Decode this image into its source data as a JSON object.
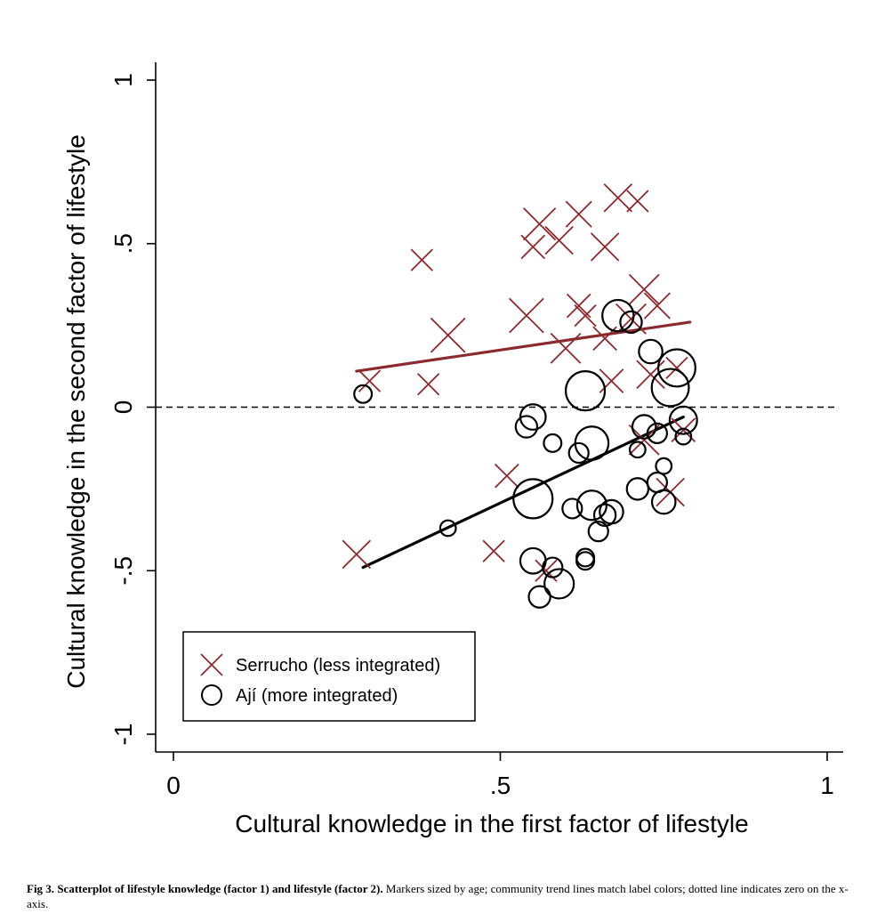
{
  "chart_data": {
    "type": "scatter",
    "xlabel": "Cultural knowledge in the first factor of lifestyle",
    "ylabel": "Cultural knowledge in the second factor of lifestyle",
    "xlim": [
      0,
      1
    ],
    "ylim": [
      -1,
      1
    ],
    "x_ticks": [
      {
        "value": 0,
        "label": "0"
      },
      {
        "value": 0.5,
        "label": ".5"
      },
      {
        "value": 1,
        "label": "1"
      }
    ],
    "y_ticks": [
      {
        "value": -1,
        "label": "-1"
      },
      {
        "value": -0.5,
        "label": "-.5"
      },
      {
        "value": 0,
        "label": "0"
      },
      {
        "value": 0.5,
        "label": ".5"
      },
      {
        "value": 1,
        "label": "1"
      }
    ],
    "grid": false,
    "legend_position": "bottom-left",
    "reference_line": {
      "y": 0,
      "style": "dashed",
      "color": "#000000"
    },
    "series": [
      {
        "name": "Serrucho (less integrated)",
        "marker": "x",
        "color": "#8b2a2e",
        "points": [
          {
            "x": 0.38,
            "y": 0.45,
            "s": 1.0
          },
          {
            "x": 0.42,
            "y": 0.22,
            "s": 1.6
          },
          {
            "x": 0.39,
            "y": 0.07,
            "s": 1.0
          },
          {
            "x": 0.3,
            "y": 0.08,
            "s": 1.0
          },
          {
            "x": 0.28,
            "y": -0.45,
            "s": 1.3
          },
          {
            "x": 0.49,
            "y": -0.44,
            "s": 1.0
          },
          {
            "x": 0.51,
            "y": -0.21,
            "s": 1.1
          },
          {
            "x": 0.54,
            "y": 0.28,
            "s": 1.6
          },
          {
            "x": 0.55,
            "y": 0.49,
            "s": 1.1
          },
          {
            "x": 0.56,
            "y": 0.56,
            "s": 1.5
          },
          {
            "x": 0.59,
            "y": 0.51,
            "s": 1.3
          },
          {
            "x": 0.62,
            "y": 0.59,
            "s": 1.2
          },
          {
            "x": 0.66,
            "y": 0.49,
            "s": 1.3
          },
          {
            "x": 0.68,
            "y": 0.64,
            "s": 1.3
          },
          {
            "x": 0.71,
            "y": 0.63,
            "s": 1.0
          },
          {
            "x": 0.6,
            "y": 0.18,
            "s": 1.4
          },
          {
            "x": 0.62,
            "y": 0.31,
            "s": 1.1
          },
          {
            "x": 0.66,
            "y": 0.21,
            "s": 1.1
          },
          {
            "x": 0.67,
            "y": 0.08,
            "s": 1.1
          },
          {
            "x": 0.7,
            "y": 0.27,
            "s": 1.4
          },
          {
            "x": 0.72,
            "y": 0.36,
            "s": 1.4
          },
          {
            "x": 0.73,
            "y": 0.1,
            "s": 1.3
          },
          {
            "x": 0.74,
            "y": 0.31,
            "s": 1.2
          },
          {
            "x": 0.72,
            "y": -0.1,
            "s": 1.4
          },
          {
            "x": 0.77,
            "y": 0.12,
            "s": 1.0
          },
          {
            "x": 0.78,
            "y": -0.07,
            "s": 1.1
          },
          {
            "x": 0.76,
            "y": -0.26,
            "s": 1.3
          },
          {
            "x": 0.57,
            "y": -0.5,
            "s": 1.0
          },
          {
            "x": 0.63,
            "y": 0.28,
            "s": 1.0
          }
        ],
        "trend": {
          "x": [
            0.28,
            0.79
          ],
          "y": [
            0.11,
            0.26
          ]
        }
      },
      {
        "name": "Ají (more integrated)",
        "marker": "o",
        "color": "#000000",
        "points": [
          {
            "x": 0.29,
            "y": 0.04,
            "s": 0.9
          },
          {
            "x": 0.42,
            "y": -0.37,
            "s": 0.8
          },
          {
            "x": 0.55,
            "y": -0.03,
            "s": 1.3
          },
          {
            "x": 0.54,
            "y": -0.06,
            "s": 1.1
          },
          {
            "x": 0.58,
            "y": -0.11,
            "s": 0.9
          },
          {
            "x": 0.55,
            "y": -0.28,
            "s": 2.0
          },
          {
            "x": 0.63,
            "y": 0.05,
            "s": 2.0
          },
          {
            "x": 0.64,
            "y": -0.11,
            "s": 1.7
          },
          {
            "x": 0.62,
            "y": -0.14,
            "s": 1.0
          },
          {
            "x": 0.61,
            "y": -0.31,
            "s": 1.0
          },
          {
            "x": 0.64,
            "y": -0.3,
            "s": 1.5
          },
          {
            "x": 0.66,
            "y": -0.33,
            "s": 1.1
          },
          {
            "x": 0.67,
            "y": -0.32,
            "s": 1.2
          },
          {
            "x": 0.65,
            "y": -0.38,
            "s": 1.0
          },
          {
            "x": 0.63,
            "y": -0.46,
            "s": 0.9
          },
          {
            "x": 0.63,
            "y": -0.47,
            "s": 0.9
          },
          {
            "x": 0.55,
            "y": -0.47,
            "s": 1.3
          },
          {
            "x": 0.58,
            "y": -0.49,
            "s": 1.0
          },
          {
            "x": 0.59,
            "y": -0.54,
            "s": 1.5
          },
          {
            "x": 0.56,
            "y": -0.58,
            "s": 1.1
          },
          {
            "x": 0.68,
            "y": 0.28,
            "s": 1.6
          },
          {
            "x": 0.7,
            "y": 0.26,
            "s": 1.1
          },
          {
            "x": 0.73,
            "y": 0.17,
            "s": 1.2
          },
          {
            "x": 0.77,
            "y": 0.12,
            "s": 1.9
          },
          {
            "x": 0.76,
            "y": 0.06,
            "s": 1.9
          },
          {
            "x": 0.72,
            "y": -0.06,
            "s": 1.2
          },
          {
            "x": 0.78,
            "y": -0.04,
            "s": 1.4
          },
          {
            "x": 0.78,
            "y": -0.09,
            "s": 0.8
          },
          {
            "x": 0.71,
            "y": -0.13,
            "s": 0.8
          },
          {
            "x": 0.75,
            "y": -0.18,
            "s": 0.8
          },
          {
            "x": 0.71,
            "y": -0.25,
            "s": 1.1
          },
          {
            "x": 0.74,
            "y": -0.23,
            "s": 1.0
          },
          {
            "x": 0.75,
            "y": -0.29,
            "s": 1.2
          },
          {
            "x": 0.74,
            "y": -0.08,
            "s": 1.0
          }
        ],
        "trend": {
          "x": [
            0.29,
            0.78
          ],
          "y": [
            -0.49,
            -0.03
          ]
        }
      }
    ]
  },
  "caption": {
    "label": "Fig 3.",
    "title": "Scatterplot of lifestyle knowledge (factor 1) and lifestyle (factor 2).",
    "text": " Markers sized by age; community trend lines match label colors; dotted line indicates zero on the x-axis."
  }
}
